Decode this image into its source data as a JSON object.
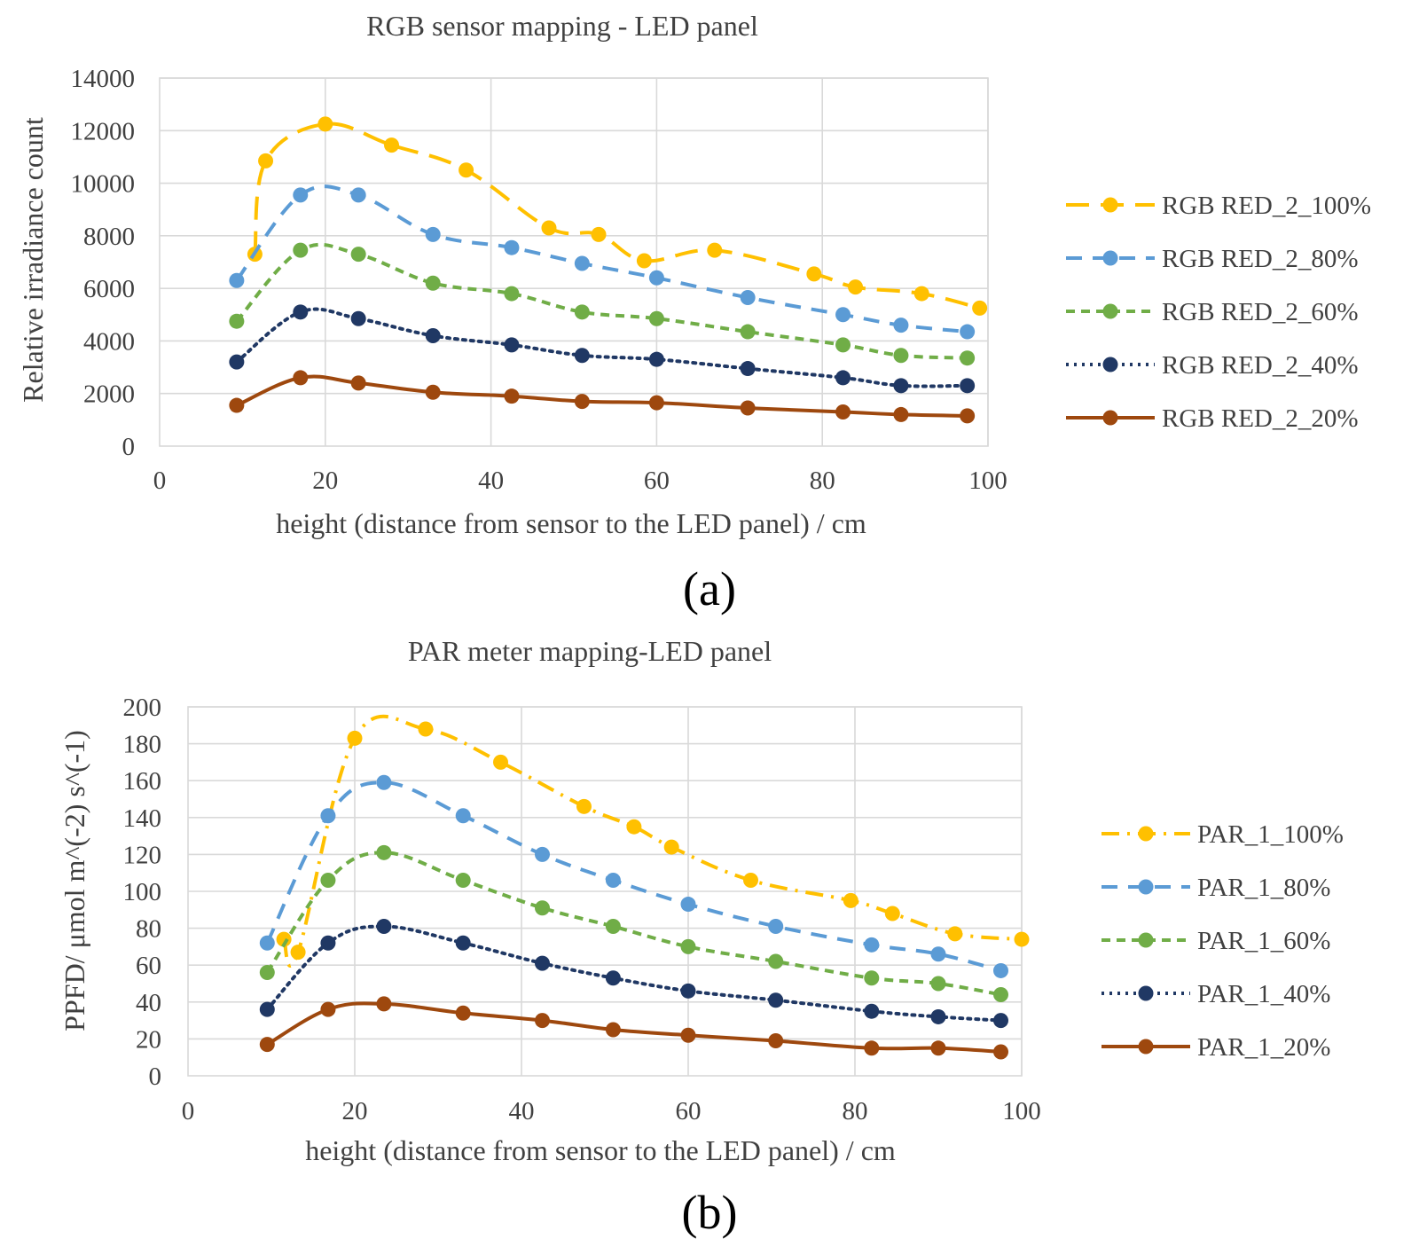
{
  "panels": [
    {
      "letter": "(a)",
      "chart_data": {
        "type": "line",
        "title": "RGB sensor mapping - LED panel",
        "xlabel": "height (distance from sensor to the LED panel) / cm",
        "ylabel": "Relative irradiance count",
        "xlim": [
          0,
          100
        ],
        "ylim": [
          0,
          14000
        ],
        "xticks": [
          0,
          20,
          40,
          60,
          80,
          100
        ],
        "yticks": [
          0,
          2000,
          4000,
          6000,
          8000,
          10000,
          12000,
          14000
        ],
        "xtick_labels": [
          "0",
          "20",
          "40",
          "60",
          "80",
          "100"
        ],
        "ytick_labels": [
          "0",
          "2000",
          "4000",
          "6000",
          "8000",
          "10000",
          "12000",
          "14000"
        ],
        "grid": true,
        "legend_position": "right",
        "series": [
          {
            "name": "RGB RED_2_100%",
            "color": "#ffc000",
            "dash": "long-dash",
            "points": [
              [
                11.5,
                7300
              ],
              [
                12.8,
                10850
              ],
              [
                20,
                12250
              ],
              [
                28,
                11450
              ],
              [
                37,
                10500
              ],
              [
                47,
                8300
              ],
              [
                53,
                8050
              ],
              [
                58.5,
                7050
              ],
              [
                67,
                7450
              ],
              [
                79,
                6550
              ],
              [
                84,
                6050
              ],
              [
                92,
                5800
              ],
              [
                99,
                5250
              ]
            ]
          },
          {
            "name": "RGB RED_2_80%",
            "color": "#5b9bd5",
            "dash": "dash",
            "points": [
              [
                9.3,
                6300
              ],
              [
                17,
                9550
              ],
              [
                24,
                9550
              ],
              [
                33,
                8050
              ],
              [
                42.5,
                7550
              ],
              [
                51,
                6950
              ],
              [
                60,
                6400
              ],
              [
                71,
                5650
              ],
              [
                82.5,
                5000
              ],
              [
                89.5,
                4600
              ],
              [
                97.5,
                4350
              ]
            ]
          },
          {
            "name": "RGB RED_2_60%",
            "color": "#70ad47",
            "dash": "short-dash",
            "points": [
              [
                9.3,
                4750
              ],
              [
                17,
                7450
              ],
              [
                24,
                7300
              ],
              [
                33,
                6200
              ],
              [
                42.5,
                5800
              ],
              [
                51,
                5100
              ],
              [
                60,
                4850
              ],
              [
                71,
                4350
              ],
              [
                82.5,
                3850
              ],
              [
                89.5,
                3450
              ],
              [
                97.5,
                3350
              ]
            ]
          },
          {
            "name": "RGB RED_2_40%",
            "color": "#203864",
            "dash": "dot",
            "points": [
              [
                9.3,
                3200
              ],
              [
                17,
                5100
              ],
              [
                24,
                4850
              ],
              [
                33,
                4200
              ],
              [
                42.5,
                3850
              ],
              [
                51,
                3450
              ],
              [
                60,
                3300
              ],
              [
                71,
                2950
              ],
              [
                82.5,
                2600
              ],
              [
                89.5,
                2300
              ],
              [
                97.5,
                2300
              ]
            ]
          },
          {
            "name": "RGB RED_2_20%",
            "color": "#9e480e",
            "dash": "solid",
            "points": [
              [
                9.3,
                1550
              ],
              [
                17,
                2600
              ],
              [
                24,
                2400
              ],
              [
                33,
                2050
              ],
              [
                42.5,
                1900
              ],
              [
                51,
                1700
              ],
              [
                60,
                1650
              ],
              [
                71,
                1450
              ],
              [
                82.5,
                1300
              ],
              [
                89.5,
                1200
              ],
              [
                97.5,
                1150
              ]
            ]
          }
        ]
      }
    },
    {
      "letter": "(b)",
      "chart_data": {
        "type": "line",
        "title": "PAR meter mapping-LED panel",
        "xlabel": "height (distance from sensor to the LED panel) / cm",
        "ylabel": "PPFD/ μmol m^(-2) s^(-1)",
        "xlim": [
          0,
          100
        ],
        "ylim": [
          0,
          200
        ],
        "xticks": [
          0,
          20,
          40,
          60,
          80,
          100
        ],
        "yticks": [
          0,
          20,
          40,
          60,
          80,
          100,
          120,
          140,
          160,
          180,
          200
        ],
        "xtick_labels": [
          "0",
          "20",
          "40",
          "60",
          "80",
          "100"
        ],
        "ytick_labels": [
          "0",
          "20",
          "40",
          "60",
          "80",
          "100",
          "120",
          "140",
          "160",
          "180",
          "200"
        ],
        "grid": true,
        "legend_position": "right",
        "series": [
          {
            "name": "PAR_1_100%",
            "color": "#ffc000",
            "dash": "dash-dot",
            "points": [
              [
                11.5,
                74
              ],
              [
                13.2,
                67
              ],
              [
                20,
                183
              ],
              [
                28.5,
                188
              ],
              [
                37.5,
                170
              ],
              [
                47.5,
                146
              ],
              [
                53.5,
                135
              ],
              [
                58,
                124
              ],
              [
                67.5,
                106
              ],
              [
                79.5,
                95
              ],
              [
                84.5,
                88
              ],
              [
                92,
                77
              ],
              [
                100,
                74
              ]
            ]
          },
          {
            "name": "PAR_1_80%",
            "color": "#5b9bd5",
            "dash": "dash",
            "points": [
              [
                9.5,
                72
              ],
              [
                16.8,
                141
              ],
              [
                23.5,
                159
              ],
              [
                33,
                141
              ],
              [
                42.5,
                120
              ],
              [
                51,
                106
              ],
              [
                60,
                93
              ],
              [
                70.5,
                81
              ],
              [
                82,
                71
              ],
              [
                90,
                66
              ],
              [
                97.5,
                57
              ]
            ]
          },
          {
            "name": "PAR_1_60%",
            "color": "#70ad47",
            "dash": "short-dash",
            "points": [
              [
                9.5,
                56
              ],
              [
                16.8,
                106
              ],
              [
                23.5,
                121
              ],
              [
                33,
                106
              ],
              [
                42.5,
                91
              ],
              [
                51,
                81
              ],
              [
                60,
                70
              ],
              [
                70.5,
                62
              ],
              [
                82,
                53
              ],
              [
                90,
                50
              ],
              [
                97.5,
                44
              ]
            ]
          },
          {
            "name": "PAR_1_40%",
            "color": "#203864",
            "dash": "dot",
            "points": [
              [
                9.5,
                36
              ],
              [
                16.8,
                72
              ],
              [
                23.5,
                81
              ],
              [
                33,
                72
              ],
              [
                42.5,
                61
              ],
              [
                51,
                53
              ],
              [
                60,
                46
              ],
              [
                70.5,
                41
              ],
              [
                82,
                35
              ],
              [
                90,
                32
              ],
              [
                97.5,
                30
              ]
            ]
          },
          {
            "name": "PAR_1_20%",
            "color": "#9e480e",
            "dash": "solid",
            "points": [
              [
                9.5,
                17
              ],
              [
                16.8,
                36
              ],
              [
                23.5,
                39
              ],
              [
                33,
                34
              ],
              [
                42.5,
                30
              ],
              [
                51,
                25
              ],
              [
                60,
                22
              ],
              [
                70.5,
                19
              ],
              [
                82,
                15
              ],
              [
                90,
                15
              ],
              [
                97.5,
                13
              ]
            ]
          }
        ]
      }
    }
  ]
}
